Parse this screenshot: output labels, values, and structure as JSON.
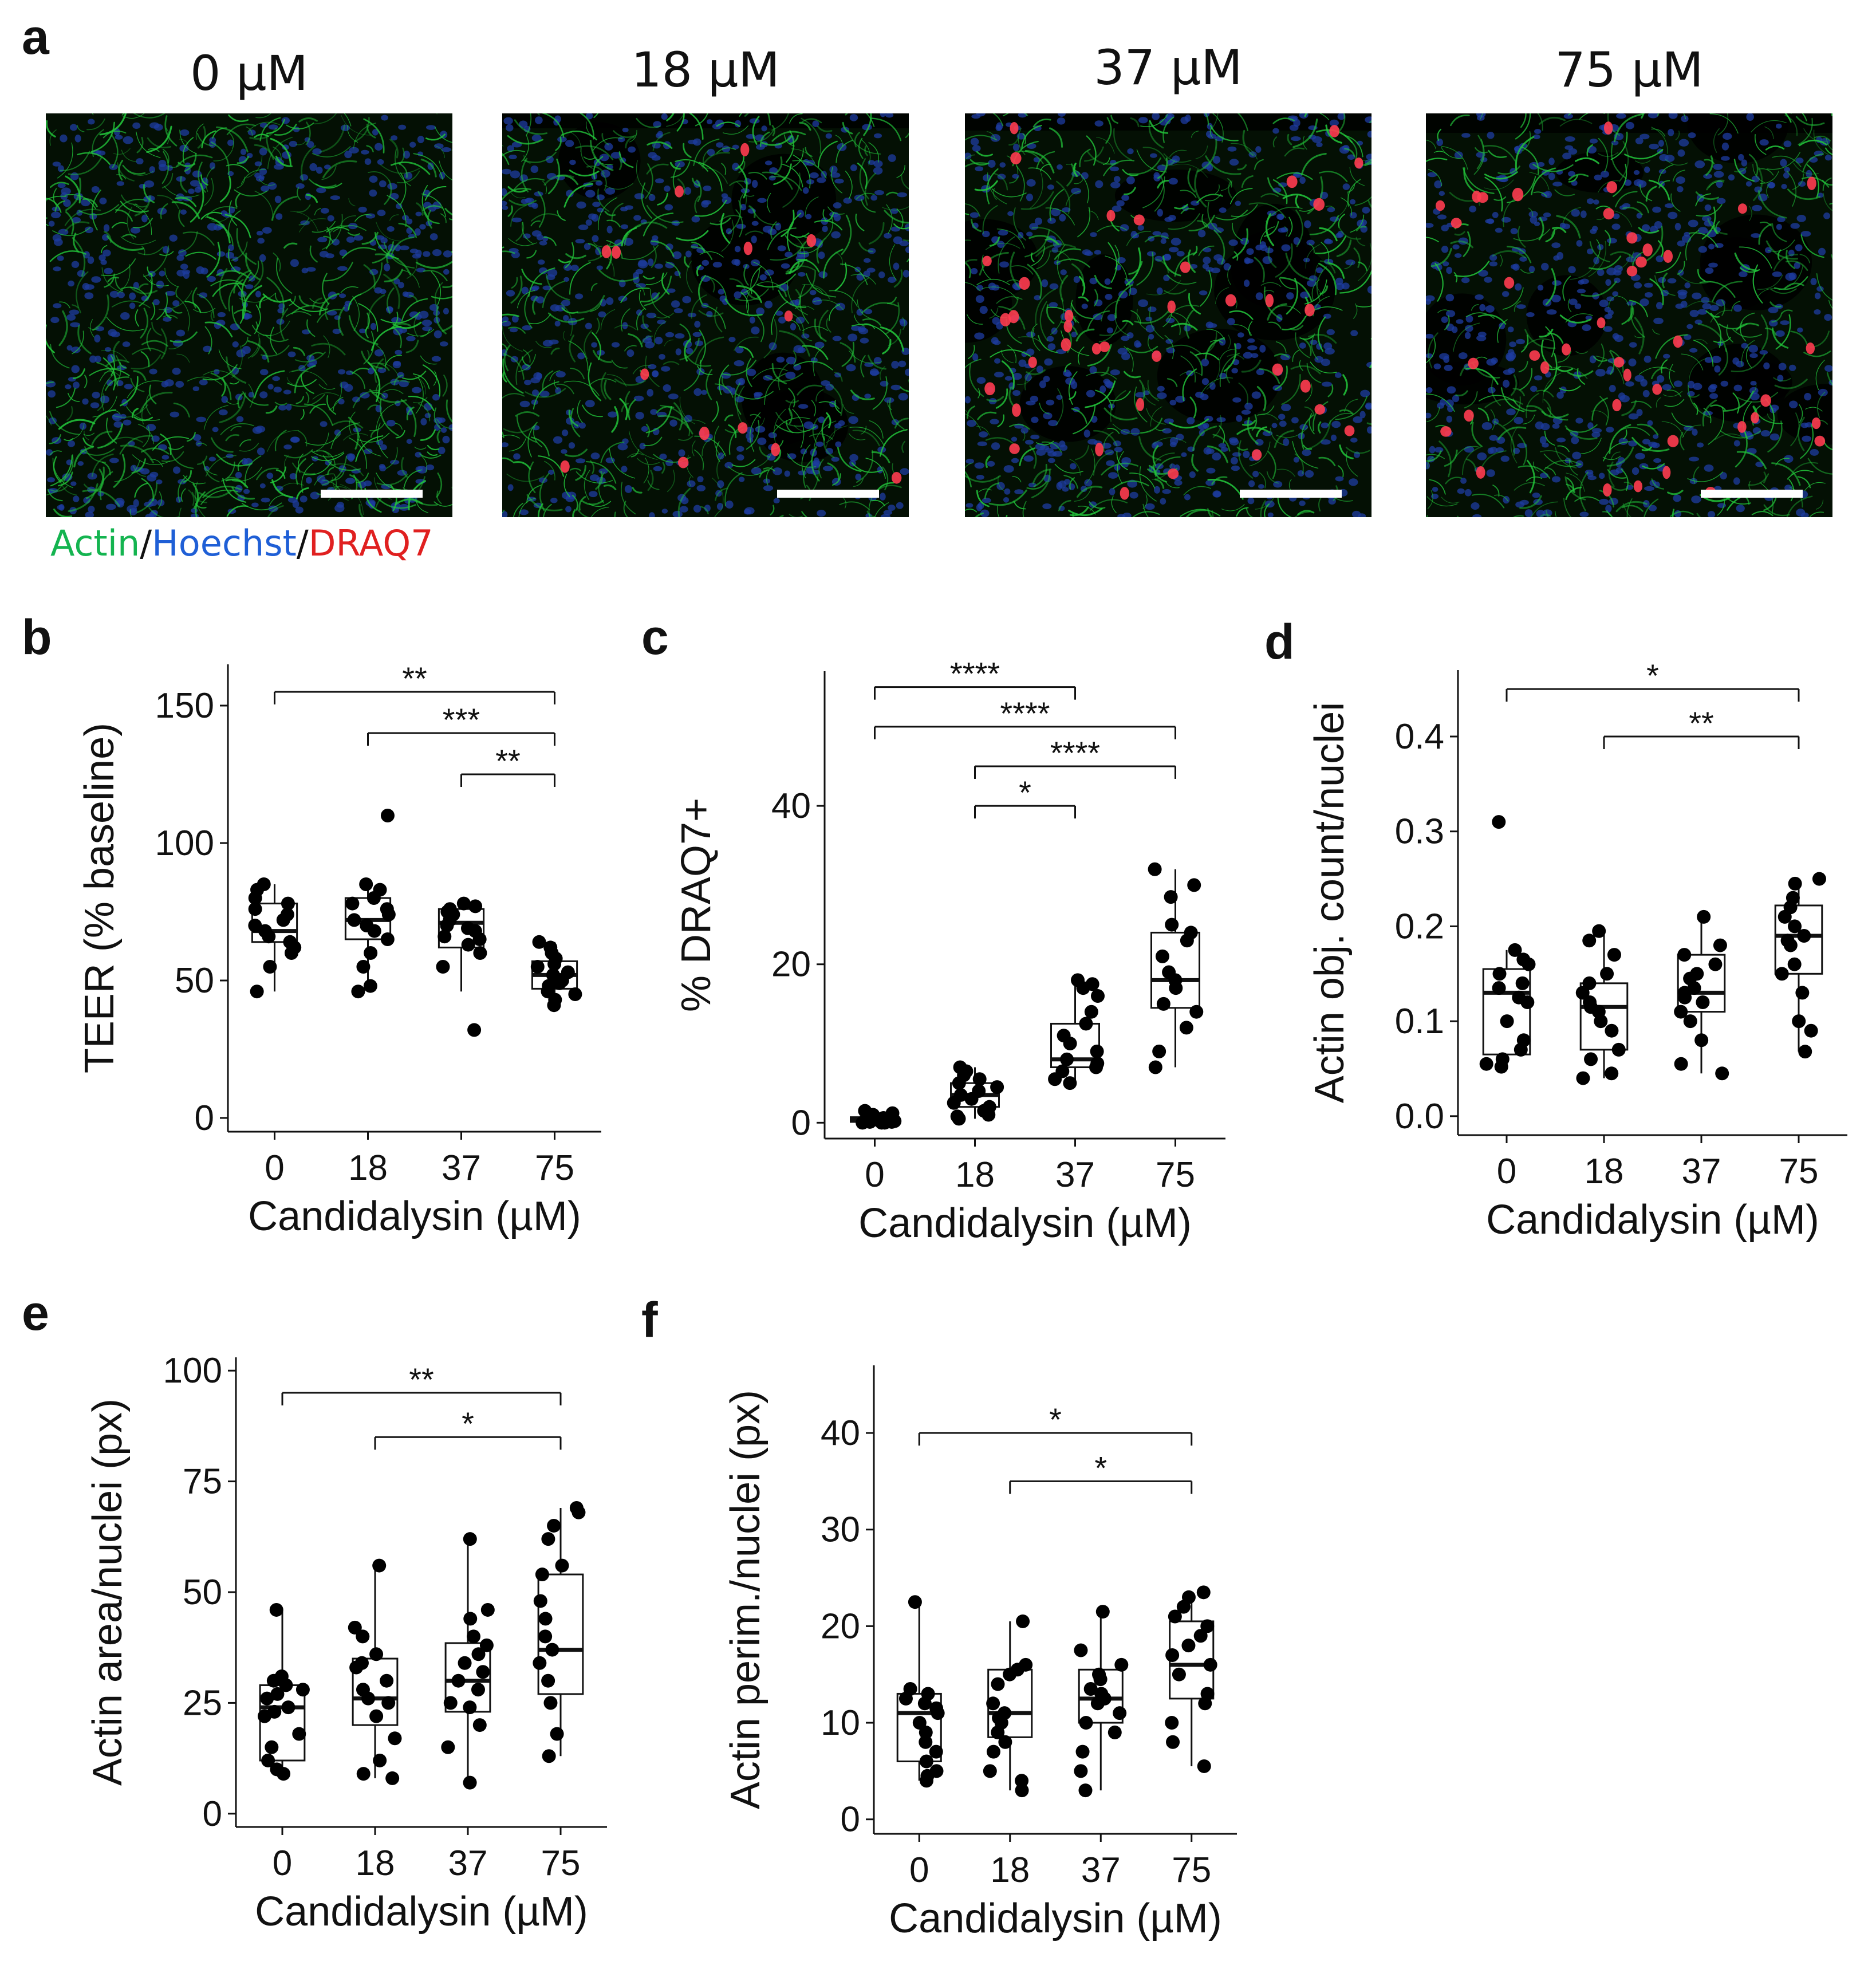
{
  "panel_a": {
    "letter": "a",
    "titles": [
      "0 µM",
      "18 µM",
      "37 µM",
      "75 µM"
    ],
    "stain_legend": [
      {
        "text": "Actin",
        "color": "#14b450"
      },
      {
        "text": "/",
        "color": "#111111"
      },
      {
        "text": "Hoechst",
        "color": "#1f5fd6"
      },
      {
        "text": "/",
        "color": "#111111"
      },
      {
        "text": "DRAQ7",
        "color": "#e02020"
      }
    ],
    "colors": {
      "actin": "#22c43a",
      "nuclei": "#1e3ca0",
      "draq7": "#ff3c50"
    },
    "draq7_cell_counts": [
      0,
      14,
      36,
      40
    ]
  },
  "chart_data": [
    {
      "panel": "b",
      "type": "box",
      "categories": [
        "0",
        "18",
        "37",
        "75"
      ],
      "xlabel": "Candidalysin (µM)",
      "ylabel": "TEER (% baseline)",
      "ylim": [
        -5,
        165
      ],
      "yticks": [
        0,
        50,
        100,
        150
      ],
      "boxes": [
        {
          "q1": 64,
          "median": 68,
          "q3": 78,
          "wlo": 46,
          "whi": 85
        },
        {
          "q1": 65,
          "median": 72,
          "q3": 80,
          "wlo": 46,
          "whi": 85
        },
        {
          "q1": 62,
          "median": 71,
          "q3": 76,
          "wlo": 46,
          "whi": 78
        },
        {
          "q1": 47,
          "median": 52,
          "q3": 57,
          "wlo": 41,
          "whi": 64
        }
      ],
      "points": [
        [
          85,
          83,
          80,
          78,
          76,
          74,
          72,
          70,
          68,
          66,
          64,
          62,
          60,
          55,
          46
        ],
        [
          110,
          85,
          83,
          80,
          78,
          76,
          74,
          72,
          70,
          68,
          65,
          60,
          55,
          48,
          46
        ],
        [
          78,
          77,
          76,
          75,
          74,
          72,
          70,
          69,
          68,
          66,
          65,
          63,
          60,
          55,
          32
        ],
        [
          64,
          62,
          60,
          58,
          56,
          55,
          53,
          52,
          50,
          49,
          48,
          46,
          45,
          43,
          41
        ]
      ],
      "significance": [
        {
          "from": 0,
          "to": 3,
          "label": "**",
          "y": 155
        },
        {
          "from": 1,
          "to": 3,
          "label": "***",
          "y": 140
        },
        {
          "from": 2,
          "to": 3,
          "label": "**",
          "y": 125
        }
      ]
    },
    {
      "panel": "c",
      "type": "box",
      "categories": [
        "0",
        "18",
        "37",
        "75"
      ],
      "xlabel": "Candidalysin (µM)",
      "ylabel": "% DRAQ7+",
      "ylim": [
        -2,
        57
      ],
      "yticks": [
        0,
        20,
        40
      ],
      "boxes": [
        {
          "q1": 0.1,
          "median": 0.4,
          "q3": 0.7,
          "wlo": 0,
          "whi": 1.5
        },
        {
          "q1": 2,
          "median": 3.5,
          "q3": 5,
          "wlo": 0.5,
          "whi": 7
        },
        {
          "q1": 7,
          "median": 8,
          "q3": 12.5,
          "wlo": 5,
          "whi": 18
        },
        {
          "q1": 14.5,
          "median": 18,
          "q3": 24,
          "wlo": 7,
          "whi": 32
        }
      ],
      "points": [
        [
          1.5,
          1.2,
          1.0,
          0.8,
          0.6,
          0.5,
          0.4,
          0.3,
          0.2,
          0.2,
          0.1,
          0.1,
          0,
          0,
          0
        ],
        [
          7,
          6.5,
          6,
          5.5,
          5,
          4.5,
          4,
          3.5,
          3,
          2.5,
          2,
          1.5,
          1,
          0.8,
          0.5
        ],
        [
          18,
          17.5,
          17,
          16,
          14,
          12.5,
          11,
          10,
          9,
          8,
          7.5,
          7,
          6.5,
          5.5,
          5
        ],
        [
          32,
          30,
          28.5,
          25,
          24,
          23,
          21,
          19,
          18,
          17,
          15,
          14,
          12,
          9,
          7
        ]
      ],
      "significance": [
        {
          "from": 0,
          "to": 2,
          "label": "****",
          "y": 55
        },
        {
          "from": 0,
          "to": 3,
          "label": "****",
          "y": 50
        },
        {
          "from": 1,
          "to": 3,
          "label": "****",
          "y": 45
        },
        {
          "from": 1,
          "to": 2,
          "label": "*",
          "y": 40
        }
      ]
    },
    {
      "panel": "d",
      "type": "box",
      "categories": [
        "0",
        "18",
        "37",
        "75"
      ],
      "xlabel": "Candidalysin (µM)",
      "ylabel": "Actin obj. count/nuclei",
      "ylim": [
        -0.02,
        0.47
      ],
      "yticks": [
        0.0,
        0.1,
        0.2,
        0.3,
        0.4
      ],
      "tick_decimals": 1,
      "boxes": [
        {
          "q1": 0.065,
          "median": 0.13,
          "q3": 0.155,
          "wlo": 0.052,
          "whi": 0.175
        },
        {
          "q1": 0.07,
          "median": 0.115,
          "q3": 0.14,
          "wlo": 0.04,
          "whi": 0.195
        },
        {
          "q1": 0.11,
          "median": 0.13,
          "q3": 0.17,
          "wlo": 0.045,
          "whi": 0.21
        },
        {
          "q1": 0.15,
          "median": 0.19,
          "q3": 0.222,
          "wlo": 0.068,
          "whi": 0.25
        }
      ],
      "points": [
        [
          0.31,
          0.175,
          0.165,
          0.16,
          0.15,
          0.14,
          0.135,
          0.125,
          0.12,
          0.1,
          0.08,
          0.07,
          0.06,
          0.055,
          0.052
        ],
        [
          0.195,
          0.185,
          0.17,
          0.15,
          0.14,
          0.13,
          0.12,
          0.115,
          0.11,
          0.1,
          0.09,
          0.07,
          0.06,
          0.045,
          0.04
        ],
        [
          0.21,
          0.18,
          0.17,
          0.16,
          0.15,
          0.145,
          0.135,
          0.13,
          0.125,
          0.12,
          0.11,
          0.1,
          0.08,
          0.055,
          0.045
        ],
        [
          0.25,
          0.245,
          0.23,
          0.22,
          0.21,
          0.2,
          0.19,
          0.185,
          0.18,
          0.16,
          0.15,
          0.13,
          0.1,
          0.09,
          0.068
        ]
      ],
      "significance": [
        {
          "from": 0,
          "to": 3,
          "label": "*",
          "y": 0.45
        },
        {
          "from": 1,
          "to": 3,
          "label": "**",
          "y": 0.4
        }
      ]
    },
    {
      "panel": "e",
      "type": "box",
      "categories": [
        "0",
        "18",
        "37",
        "75"
      ],
      "xlabel": "Candidalysin (µM)",
      "ylabel": "Actin area/nuclei (px)",
      "ylim": [
        -3,
        103
      ],
      "yticks": [
        0,
        25,
        50,
        75,
        100
      ],
      "boxes": [
        {
          "q1": 12,
          "median": 24,
          "q3": 29,
          "wlo": 9,
          "whi": 46
        },
        {
          "q1": 20,
          "median": 26,
          "q3": 35,
          "wlo": 8,
          "whi": 56
        },
        {
          "q1": 23,
          "median": 30,
          "q3": 38.5,
          "wlo": 7,
          "whi": 62
        },
        {
          "q1": 27,
          "median": 37,
          "q3": 54,
          "wlo": 13,
          "whi": 69
        }
      ],
      "points": [
        [
          46,
          31,
          30,
          29,
          28,
          27,
          26,
          24,
          23,
          22,
          18,
          15,
          12,
          10,
          9
        ],
        [
          56,
          42,
          40,
          36,
          34,
          33,
          30,
          28,
          26,
          25,
          22,
          17,
          12,
          9,
          8
        ],
        [
          62,
          46,
          44,
          40,
          38,
          36,
          34,
          32,
          30,
          28,
          25,
          24,
          20,
          15,
          7
        ],
        [
          69,
          68,
          65,
          62,
          56,
          54,
          48,
          44,
          40,
          37,
          34,
          30,
          25,
          18,
          13
        ]
      ],
      "significance": [
        {
          "from": 0,
          "to": 3,
          "label": "**",
          "y": 95
        },
        {
          "from": 1,
          "to": 3,
          "label": "*",
          "y": 85
        }
      ]
    },
    {
      "panel": "f",
      "type": "box",
      "categories": [
        "0",
        "18",
        "37",
        "75"
      ],
      "xlabel": "Candidalysin (µM)",
      "ylabel": "Actin perim./nuclei (px)",
      "ylim": [
        -1.5,
        47
      ],
      "yticks": [
        0,
        10,
        20,
        30,
        40
      ],
      "boxes": [
        {
          "q1": 6,
          "median": 11,
          "q3": 13,
          "wlo": 4,
          "whi": 22.5
        },
        {
          "q1": 8.5,
          "median": 11,
          "q3": 15.5,
          "wlo": 3,
          "whi": 20.5
        },
        {
          "q1": 10,
          "median": 12.5,
          "q3": 15.5,
          "wlo": 3,
          "whi": 21.5
        },
        {
          "q1": 12.5,
          "median": 16,
          "q3": 20.5,
          "wlo": 5.5,
          "whi": 23.5
        }
      ],
      "points": [
        [
          22.5,
          13.5,
          13,
          12.5,
          12,
          11.5,
          11,
          10,
          9,
          8,
          7,
          6,
          5,
          4.5,
          4
        ],
        [
          20.5,
          16,
          15.5,
          15,
          14,
          12,
          11,
          10.5,
          10,
          9,
          8,
          7,
          5,
          4,
          3
        ],
        [
          21.5,
          17.5,
          16,
          15,
          14.5,
          13.5,
          13,
          12.5,
          12,
          11,
          10,
          9,
          7,
          5,
          3
        ],
        [
          23.5,
          23,
          22,
          21,
          20,
          19,
          18,
          17,
          16,
          15,
          13,
          12,
          10,
          8,
          5.5
        ]
      ],
      "significance": [
        {
          "from": 0,
          "to": 3,
          "label": "*",
          "y": 40
        },
        {
          "from": 1,
          "to": 3,
          "label": "*",
          "y": 35
        }
      ]
    }
  ]
}
